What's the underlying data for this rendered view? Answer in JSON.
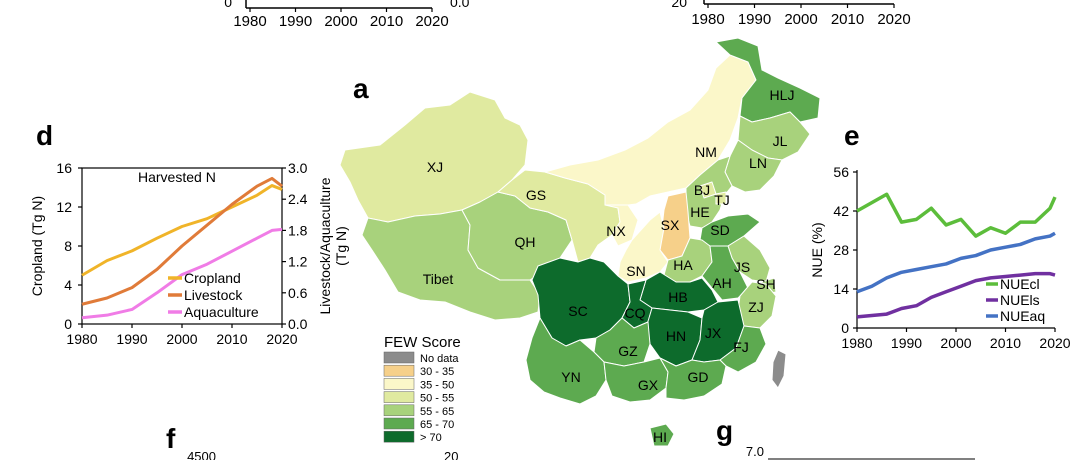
{
  "top_axes": {
    "left": {
      "y_bottom": "0",
      "y_bottom_right": "0.0",
      "x_ticks": [
        "1980",
        "1990",
        "2000",
        "2010",
        "2020"
      ]
    },
    "right": {
      "y_bottom": "20",
      "x_ticks": [
        "1980",
        "1990",
        "2000",
        "2010",
        "2020"
      ]
    }
  },
  "panel_letters": {
    "a": "a",
    "d": "d",
    "e": "e",
    "f": "f",
    "g": "g"
  },
  "map": {
    "legend_title": "FEW Score",
    "legend": [
      {
        "label": "No data",
        "color": "#8c8c8c"
      },
      {
        "label": "30 - 35",
        "color": "#f6d08a"
      },
      {
        "label": "35 - 50",
        "color": "#fbf7c9"
      },
      {
        "label": "50 - 55",
        "color": "#e0eaa0"
      },
      {
        "label": "55 - 65",
        "color": "#a8d27c"
      },
      {
        "label": "65 - 70",
        "color": "#5daa50"
      },
      {
        "label": "> 70",
        "color": "#0d6b2c"
      }
    ],
    "provinces": [
      "XJ",
      "Tibet",
      "QH",
      "GS",
      "NM",
      "HLJ",
      "JL",
      "LN",
      "BJ",
      "TJ",
      "HE",
      "SX",
      "NX",
      "SD",
      "HA",
      "JS",
      "SH",
      "AH",
      "ZJ",
      "SN",
      "SC",
      "CQ",
      "HB",
      "HN",
      "JX",
      "FJ",
      "GZ",
      "YN",
      "GX",
      "GD",
      "HI"
    ]
  },
  "chart_data": [
    {
      "type": "line",
      "panel": "d",
      "title": "Harvested N",
      "ylabel": "Cropland (Tg N)",
      "ylabel_right": "Livestock/Aquaculture (Tg N)",
      "ylim": [
        0,
        16
      ],
      "ylim_right": [
        0,
        3.0
      ],
      "yticks": [
        "0",
        "4",
        "8",
        "12",
        "16"
      ],
      "yticks_right": [
        "0.0",
        "0.6",
        "1.2",
        "1.8",
        "2.4",
        "3.0"
      ],
      "xticks": [
        "1980",
        "1990",
        "2000",
        "2010",
        "2020"
      ],
      "x": [
        1980,
        1985,
        1990,
        1995,
        2000,
        2005,
        2010,
        2015,
        2018,
        2020
      ],
      "series": [
        {
          "name": "Cropland",
          "axis": "left",
          "color": "#f0b429",
          "values": [
            5.0,
            6.5,
            7.5,
            8.8,
            10.0,
            10.8,
            12.0,
            13.2,
            14.2,
            13.8
          ]
        },
        {
          "name": "Livestock",
          "axis": "right",
          "color": "#e07b39",
          "values": [
            0.38,
            0.5,
            0.7,
            1.05,
            1.5,
            1.9,
            2.3,
            2.65,
            2.8,
            2.65
          ]
        },
        {
          "name": "Aquaculture",
          "axis": "right",
          "color": "#f07ce6",
          "values": [
            0.12,
            0.17,
            0.28,
            0.6,
            0.95,
            1.15,
            1.4,
            1.65,
            1.8,
            1.82
          ]
        }
      ]
    },
    {
      "type": "line",
      "panel": "e",
      "ylabel": "NUE (%)",
      "ylim": [
        0,
        56
      ],
      "yticks": [
        "0",
        "14",
        "28",
        "42",
        "56"
      ],
      "xticks": [
        "1980",
        "1990",
        "2000",
        "2010",
        "2020"
      ],
      "x": [
        1980,
        1983,
        1986,
        1989,
        1992,
        1995,
        1998,
        2001,
        2004,
        2007,
        2010,
        2013,
        2016,
        2019,
        2020
      ],
      "series": [
        {
          "name": "NUEcl",
          "color": "#5cbd3b",
          "values": [
            42,
            45,
            48,
            38,
            39,
            43,
            37,
            39,
            33,
            36,
            34,
            38,
            38,
            43,
            47
          ]
        },
        {
          "name": "NUEls",
          "color": "#7030a0",
          "values": [
            4,
            4.5,
            5,
            7,
            8,
            11,
            13,
            15,
            17,
            18,
            18.5,
            19,
            19.5,
            19.5,
            19
          ]
        },
        {
          "name": "NUEaq",
          "color": "#4472c4",
          "values": [
            13,
            15,
            18,
            20,
            21,
            22,
            23,
            25,
            26,
            28,
            29,
            30,
            32,
            33,
            34
          ]
        }
      ]
    },
    {
      "type": "line",
      "panel": "f",
      "yticks": [
        "4500",
        "20"
      ],
      "xticks": [],
      "series": []
    },
    {
      "type": "line",
      "panel": "g",
      "yticks": [
        "7.0"
      ],
      "xticks": [],
      "series": []
    }
  ]
}
